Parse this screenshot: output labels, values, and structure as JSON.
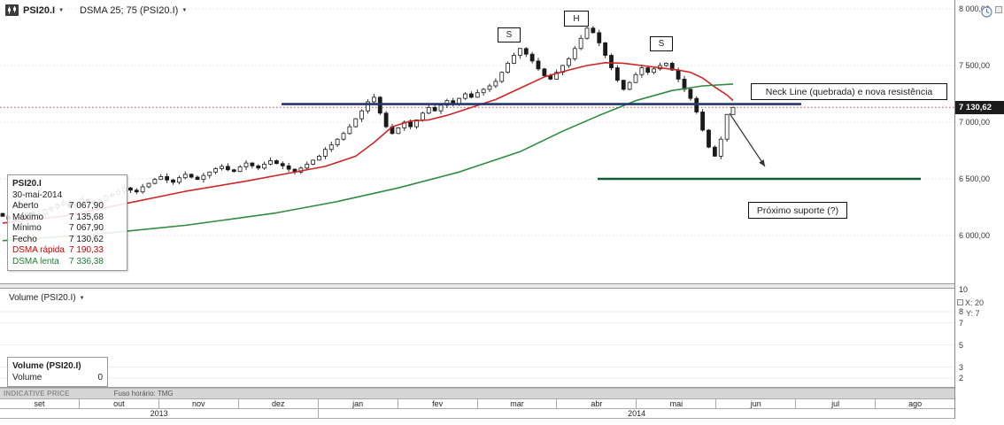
{
  "header": {
    "symbol": "PSI20.I",
    "indicator": "DSMA 25; 75 (PSI20.I)",
    "dropdown": "▼"
  },
  "price_axis": {
    "labels": [
      {
        "text": "8 000,00",
        "price": 8000
      },
      {
        "text": "7 500,00",
        "price": 7500
      },
      {
        "text": "7 000,00",
        "price": 7000
      },
      {
        "text": "6 500,00",
        "price": 6500
      },
      {
        "text": "6 000,00",
        "price": 6000
      }
    ],
    "last_price_label": "7 130,62"
  },
  "tooltip": {
    "title": "PSI20.I",
    "date": "30-mai-2014",
    "rows": [
      {
        "label": "Aberto",
        "value": "7 067,90",
        "color": "#1a1a1a"
      },
      {
        "label": "Máximo",
        "value": "7 135,68",
        "color": "#1a1a1a"
      },
      {
        "label": "Mínimo",
        "value": "7 067,90",
        "color": "#1a1a1a"
      },
      {
        "label": "Fecho",
        "value": "7 130,62",
        "color": "#1a1a1a"
      },
      {
        "label": "DSMA rápida",
        "value": "7 190,33",
        "color": "#cc0000"
      },
      {
        "label": "DSMA lenta",
        "value": "7 336,38",
        "color": "#1e7e34"
      }
    ]
  },
  "annotations": {
    "left_shoulder": "S",
    "head": "H",
    "right_shoulder": "S",
    "neck_label": "Neck Line (quebrada) e nova resistência",
    "support_label": "Próximo suporte (?)"
  },
  "volume": {
    "header": "Volume (PSI20.I)",
    "legend_title": "Volume (PSI20.I)",
    "legend_label": "Volume",
    "legend_value": "0",
    "axis": [
      {
        "text": "10",
        "value": 10
      },
      {
        "text": "8",
        "value": 8
      },
      {
        "text": "7",
        "value": 7
      },
      {
        "text": "5",
        "value": 5
      },
      {
        "text": "3",
        "value": 3
      },
      {
        "text": "2",
        "value": 2
      }
    ],
    "cursor_x": "X: 20",
    "cursor_y": "Y: 7"
  },
  "status_bar": {
    "left": "INDICATIVE PRICE",
    "timezone": "Fuso horário: TMG"
  },
  "x_axis": {
    "months": [
      "set",
      "out",
      "nov",
      "dez",
      "jan",
      "fev",
      "mar",
      "abr",
      "mai",
      "jun",
      "jul",
      "ago"
    ],
    "years": [
      "2013",
      "2014"
    ]
  },
  "chart_data": {
    "type": "candlestick",
    "instrument": "PSI20.I",
    "date_label": "30-mai-2014",
    "ylim": [
      5850,
      8050
    ],
    "y_gridlines": [
      8000,
      7500,
      7000,
      6500,
      6000
    ],
    "last_price": 7130.62,
    "closes": [
      6170,
      6145,
      6125,
      6160,
      6200,
      6175,
      6190,
      6230,
      6245,
      6270,
      6290,
      6255,
      6270,
      6320,
      6300,
      6285,
      6310,
      6350,
      6365,
      6390,
      6420,
      6400,
      6385,
      6430,
      6460,
      6495,
      6520,
      6490,
      6470,
      6510,
      6540,
      6515,
      6495,
      6530,
      6560,
      6590,
      6610,
      6580,
      6565,
      6605,
      6640,
      6615,
      6595,
      6630,
      6660,
      6635,
      6615,
      6585,
      6560,
      6595,
      6630,
      6665,
      6700,
      6760,
      6800,
      6850,
      6900,
      6960,
      7030,
      7100,
      7180,
      7220,
      7080,
      6960,
      6900,
      6950,
      7000,
      6960,
      7020,
      7080,
      7130,
      7100,
      7150,
      7190,
      7160,
      7210,
      7250,
      7220,
      7260,
      7290,
      7320,
      7360,
      7440,
      7520,
      7590,
      7650,
      7600,
      7540,
      7470,
      7410,
      7380,
      7440,
      7500,
      7560,
      7650,
      7740,
      7830,
      7790,
      7700,
      7590,
      7480,
      7370,
      7290,
      7350,
      7420,
      7480,
      7440,
      7470,
      7500,
      7520,
      7460,
      7380,
      7290,
      7210,
      7090,
      6930,
      6780,
      6700,
      6850,
      7067.9,
      7130.62
    ],
    "last_candle": {
      "open": 7067.9,
      "high": 7135.68,
      "low": 7067.9,
      "close": 7130.62
    },
    "overlays": [
      {
        "name": "DSMA rápida",
        "period": 25,
        "color": "#cf2626",
        "points": [
          [
            0,
            6110
          ],
          [
            10,
            6170
          ],
          [
            20,
            6280
          ],
          [
            30,
            6390
          ],
          [
            40,
            6480
          ],
          [
            47,
            6550
          ],
          [
            53,
            6610
          ],
          [
            58,
            6700
          ],
          [
            61,
            6820
          ],
          [
            64,
            6960
          ],
          [
            67,
            7010
          ],
          [
            70,
            7020
          ],
          [
            73,
            7060
          ],
          [
            77,
            7130
          ],
          [
            81,
            7200
          ],
          [
            85,
            7300
          ],
          [
            89,
            7400
          ],
          [
            93,
            7460
          ],
          [
            96,
            7500
          ],
          [
            99,
            7525
          ],
          [
            102,
            7520
          ],
          [
            105,
            7500
          ],
          [
            108,
            7480
          ],
          [
            111,
            7460
          ],
          [
            113,
            7440
          ],
          [
            115,
            7390
          ],
          [
            117,
            7310
          ],
          [
            119,
            7240
          ],
          [
            120,
            7190.33
          ]
        ]
      },
      {
        "name": "DSMA lenta",
        "period": 75,
        "color": "#2e8b40",
        "points": [
          [
            0,
            5955
          ],
          [
            15,
            6010
          ],
          [
            30,
            6090
          ],
          [
            45,
            6200
          ],
          [
            55,
            6300
          ],
          [
            65,
            6420
          ],
          [
            75,
            6560
          ],
          [
            85,
            6740
          ],
          [
            92,
            6920
          ],
          [
            98,
            7060
          ],
          [
            104,
            7190
          ],
          [
            110,
            7280
          ],
          [
            115,
            7320
          ],
          [
            120,
            7336.38
          ]
        ]
      }
    ],
    "drawings": {
      "neck_line": {
        "price": 7160,
        "x_from": 318,
        "x_to": 905,
        "color": "#22386e"
      },
      "support_line": {
        "price": 6500,
        "x_from": 675,
        "x_to": 1040,
        "color": "#115c33"
      },
      "arrow": {
        "from": [
          824,
          128
        ],
        "to": [
          864,
          188
        ],
        "color": "#333333"
      },
      "pattern_labels": {
        "left_shoulder": "S",
        "head": "H",
        "right_shoulder": "S"
      }
    }
  }
}
